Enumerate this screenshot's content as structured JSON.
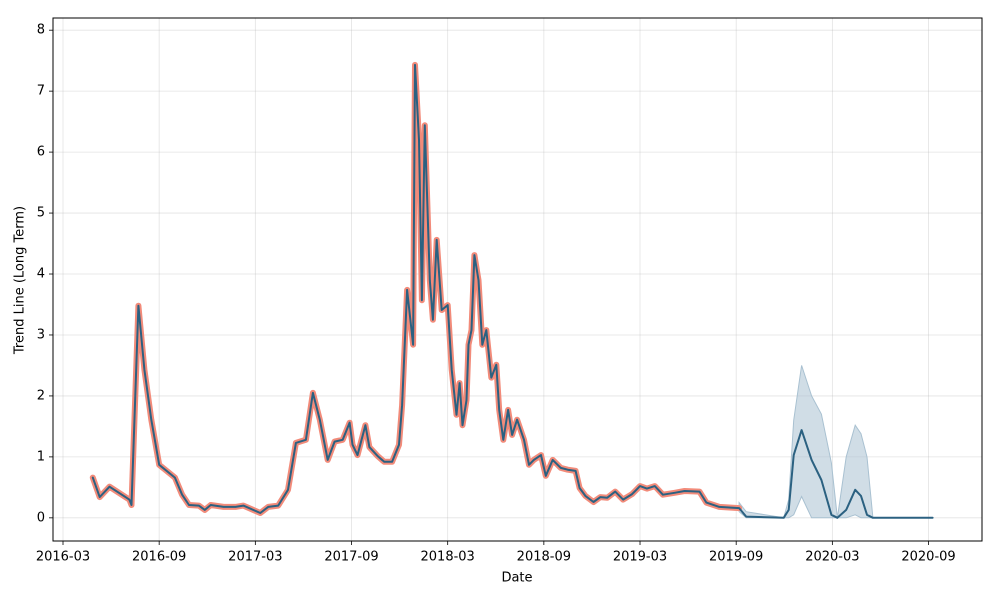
{
  "chart_data": {
    "type": "line",
    "xlabel": "Date",
    "ylabel": "Trend Line (Long Term)",
    "xlim": [
      2016.115,
      2020.945
    ],
    "ylim": [
      -0.38,
      8.2
    ],
    "xticks": [
      {
        "value": 2016.167,
        "label": "2016-03"
      },
      {
        "value": 2016.667,
        "label": "2016-09"
      },
      {
        "value": 2017.167,
        "label": "2017-03"
      },
      {
        "value": 2017.667,
        "label": "2017-09"
      },
      {
        "value": 2018.167,
        "label": "2018-03"
      },
      {
        "value": 2018.667,
        "label": "2018-09"
      },
      {
        "value": 2019.167,
        "label": "2019-03"
      },
      {
        "value": 2019.667,
        "label": "2019-09"
      },
      {
        "value": 2020.167,
        "label": "2020-03"
      },
      {
        "value": 2020.667,
        "label": "2020-09"
      }
    ],
    "yticks": [
      0,
      1,
      2,
      3,
      4,
      5,
      6,
      7,
      8
    ],
    "grid": true,
    "x": [
      2016.322,
      2016.358,
      2016.409,
      2016.512,
      2016.523,
      2016.559,
      2016.59,
      2016.626,
      2016.667,
      2016.749,
      2016.786,
      2016.822,
      2016.873,
      2016.904,
      2016.935,
      2017.002,
      2017.064,
      2017.105,
      2017.193,
      2017.234,
      2017.286,
      2017.337,
      2017.378,
      2017.43,
      2017.466,
      2017.502,
      2017.543,
      2017.579,
      2017.621,
      2017.657,
      2017.672,
      2017.698,
      2017.739,
      2017.76,
      2017.801,
      2017.837,
      2017.878,
      2017.914,
      2017.93,
      2017.956,
      2017.987,
      2017.997,
      2018.018,
      2018.033,
      2018.048,
      2018.074,
      2018.09,
      2018.11,
      2018.136,
      2018.167,
      2018.188,
      2018.213,
      2018.229,
      2018.244,
      2018.265,
      2018.275,
      2018.291,
      2018.306,
      2018.327,
      2018.347,
      2018.368,
      2018.394,
      2018.42,
      2018.435,
      2018.456,
      2018.481,
      2018.502,
      2018.528,
      2018.564,
      2018.59,
      2018.615,
      2018.652,
      2018.677,
      2018.713,
      2018.755,
      2018.791,
      2018.832,
      2018.853,
      2018.883,
      2018.925,
      2018.961,
      2018.997,
      2019.038,
      2019.079,
      2019.126,
      2019.167,
      2019.203,
      2019.244,
      2019.286,
      2019.347,
      2019.399,
      2019.476,
      2019.512,
      2019.579,
      2019.682,
      2019.719,
      2019.914,
      2019.94,
      2019.966,
      2020.007,
      2020.059,
      2020.11,
      2020.162,
      2020.193,
      2020.239,
      2020.286,
      2020.316,
      2020.347,
      2020.378,
      2020.688
    ],
    "history": {
      "color": "#f28b7a",
      "values": [
        0.66,
        0.34,
        0.51,
        0.3,
        0.21,
        3.48,
        2.43,
        1.61,
        0.87,
        0.66,
        0.38,
        0.21,
        0.2,
        0.13,
        0.21,
        0.18,
        0.18,
        0.2,
        0.08,
        0.18,
        0.2,
        0.46,
        1.23,
        1.28,
        2.05,
        1.61,
        0.95,
        1.25,
        1.28,
        1.56,
        1.2,
        1.03,
        1.52,
        1.16,
        1.02,
        0.92,
        0.92,
        1.2,
        1.85,
        3.74,
        2.84,
        7.43,
        6.2,
        3.57,
        6.44,
        3.9,
        3.25,
        4.56,
        3.41,
        3.49,
        2.43,
        1.69,
        2.21,
        1.52,
        1.93,
        2.84,
        3.08,
        4.31,
        3.9,
        2.84,
        3.08,
        2.3,
        2.51,
        1.77,
        1.28,
        1.77,
        1.36,
        1.61,
        1.28,
        0.87,
        0.95,
        1.03,
        0.69,
        0.95,
        0.82,
        0.79,
        0.77,
        0.49,
        0.36,
        0.26,
        0.34,
        0.33,
        0.43,
        0.3,
        0.39,
        0.52,
        0.48,
        0.52,
        0.38,
        0.41,
        0.44,
        0.43,
        0.25,
        0.18,
        0.16,
        null,
        null,
        null,
        null,
        null,
        null,
        null,
        null,
        null,
        null,
        null,
        null,
        null,
        null,
        null
      ]
    },
    "trend": {
      "color": "#2b6181",
      "values": [
        0.66,
        0.34,
        0.51,
        0.3,
        0.21,
        3.48,
        2.43,
        1.61,
        0.87,
        0.66,
        0.38,
        0.21,
        0.2,
        0.13,
        0.21,
        0.18,
        0.18,
        0.2,
        0.08,
        0.18,
        0.2,
        0.46,
        1.23,
        1.28,
        2.05,
        1.61,
        0.95,
        1.25,
        1.28,
        1.56,
        1.2,
        1.03,
        1.52,
        1.16,
        1.02,
        0.92,
        0.92,
        1.2,
        1.85,
        3.74,
        2.84,
        7.43,
        6.2,
        3.57,
        6.44,
        3.9,
        3.25,
        4.56,
        3.41,
        3.49,
        2.43,
        1.69,
        2.21,
        1.52,
        1.93,
        2.84,
        3.08,
        4.31,
        3.9,
        2.84,
        3.08,
        2.3,
        2.51,
        1.77,
        1.28,
        1.77,
        1.36,
        1.61,
        1.28,
        0.87,
        0.95,
        1.03,
        0.69,
        0.95,
        0.82,
        0.79,
        0.77,
        0.49,
        0.36,
        0.26,
        0.34,
        0.33,
        0.43,
        0.3,
        0.39,
        0.52,
        0.48,
        0.52,
        0.38,
        0.41,
        0.44,
        0.43,
        0.25,
        0.18,
        0.16,
        0.02,
        0.0,
        0.13,
        1.03,
        1.44,
        0.95,
        0.62,
        0.05,
        0.0,
        0.13,
        0.46,
        0.36,
        0.05,
        0.0,
        0.0
      ]
    },
    "band": {
      "color": "#a9c1d1",
      "upper": [
        null,
        null,
        null,
        null,
        null,
        null,
        null,
        null,
        null,
        null,
        null,
        null,
        null,
        null,
        null,
        null,
        null,
        null,
        null,
        null,
        null,
        null,
        null,
        null,
        null,
        null,
        null,
        null,
        null,
        null,
        null,
        null,
        null,
        null,
        null,
        null,
        null,
        null,
        null,
        null,
        null,
        null,
        null,
        null,
        null,
        null,
        null,
        null,
        null,
        null,
        null,
        null,
        null,
        null,
        null,
        null,
        null,
        null,
        null,
        null,
        null,
        null,
        null,
        null,
        null,
        null,
        null,
        null,
        null,
        null,
        null,
        null,
        null,
        null,
        null,
        null,
        null,
        null,
        null,
        null,
        null,
        null,
        null,
        null,
        null,
        null,
        null,
        null,
        null,
        null,
        null,
        null,
        null,
        null,
        0.25,
        0.1,
        0.0,
        0.3,
        1.6,
        2.5,
        2.0,
        1.7,
        0.9,
        0.0,
        1.0,
        1.52,
        1.38,
        1.0,
        0.0,
        0.0
      ],
      "lower": [
        null,
        null,
        null,
        null,
        null,
        null,
        null,
        null,
        null,
        null,
        null,
        null,
        null,
        null,
        null,
        null,
        null,
        null,
        null,
        null,
        null,
        null,
        null,
        null,
        null,
        null,
        null,
        null,
        null,
        null,
        null,
        null,
        null,
        null,
        null,
        null,
        null,
        null,
        null,
        null,
        null,
        null,
        null,
        null,
        null,
        null,
        null,
        null,
        null,
        null,
        null,
        null,
        null,
        null,
        null,
        null,
        null,
        null,
        null,
        null,
        null,
        null,
        null,
        null,
        null,
        null,
        null,
        null,
        null,
        null,
        null,
        null,
        null,
        null,
        null,
        null,
        null,
        null,
        null,
        null,
        null,
        null,
        null,
        null,
        null,
        null,
        null,
        null,
        null,
        null,
        null,
        null,
        null,
        null,
        0.1,
        0.0,
        0.0,
        0.0,
        0.05,
        0.35,
        0.0,
        0.0,
        0.0,
        0.0,
        0.0,
        0.05,
        0.0,
        0.0,
        0.0,
        0.0
      ]
    }
  }
}
